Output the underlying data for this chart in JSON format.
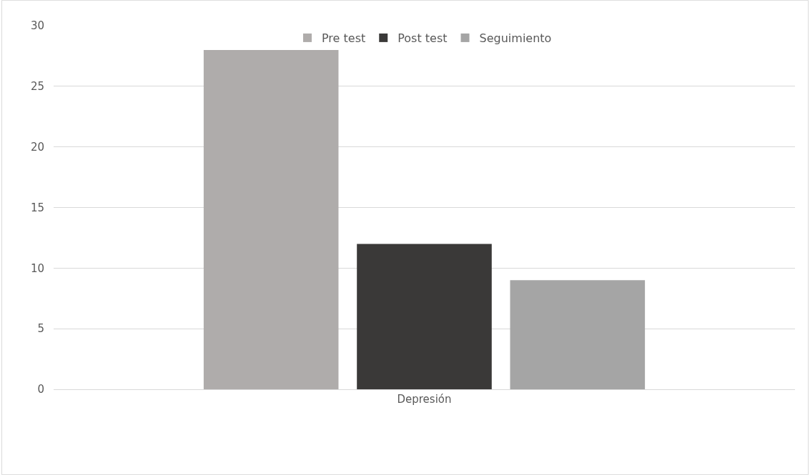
{
  "chart_data": {
    "type": "bar",
    "categories": [
      "Depresión"
    ],
    "series": [
      {
        "name": "Pre test",
        "color": "#afacab",
        "values": [
          28
        ]
      },
      {
        "name": "Post test",
        "color": "#3a3938",
        "values": [
          12
        ]
      },
      {
        "name": "Seguimiento",
        "color": "#a5a5a5",
        "values": [
          9
        ]
      }
    ],
    "ylim": [
      0,
      30
    ],
    "yticks": [
      0,
      5,
      10,
      15,
      20,
      25,
      30
    ],
    "grid": "y",
    "legend": "top"
  }
}
